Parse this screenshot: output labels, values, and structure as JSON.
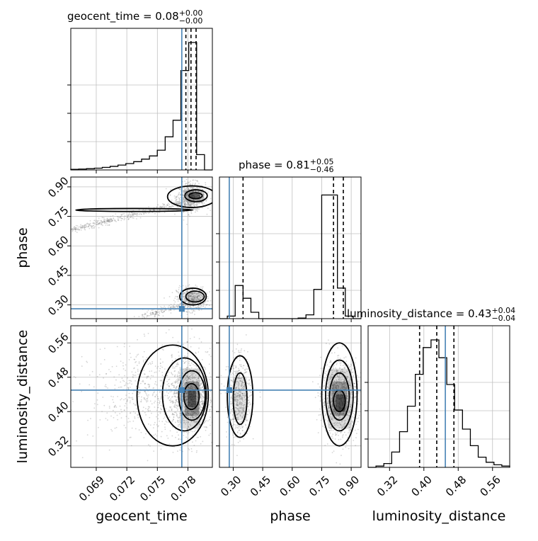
{
  "chart_data": {
    "type": "corner",
    "colors": {
      "truth": "#4682b4",
      "hist": "#000000",
      "grid": "#c0c0c0",
      "points": "#8a8a8a"
    },
    "parameters": [
      {
        "name": "geocent_time",
        "label": "geocent_time",
        "range": [
          0.0665,
          0.0804
        ],
        "ticks": [
          0.069,
          0.072,
          0.075,
          0.078
        ],
        "tick_labels": [
          "0.069",
          "0.072",
          "0.075",
          "0.078"
        ],
        "truth": 0.0774,
        "median": 0.0783,
        "quantiles": [
          0.0778,
          0.0783,
          0.0788
        ]
      },
      {
        "name": "phase",
        "label": "phase",
        "range": [
          0.23,
          0.95
        ],
        "ticks": [
          0.3,
          0.45,
          0.6,
          0.75,
          0.9
        ],
        "tick_labels": [
          "0.30",
          "0.45",
          "0.60",
          "0.75",
          "0.90"
        ],
        "truth": 0.28,
        "median": 0.81,
        "quantiles": [
          0.35,
          0.81,
          0.86
        ]
      },
      {
        "name": "luminosity_distance",
        "label": "luminosity_distance",
        "range": [
          0.27,
          0.6
        ],
        "ticks": [
          0.32,
          0.4,
          0.48,
          0.56
        ],
        "tick_labels": [
          "0.32",
          "0.40",
          "0.48",
          "0.56"
        ],
        "truth": 0.45,
        "median": 0.43,
        "quantiles": [
          0.39,
          0.43,
          0.47
        ]
      }
    ],
    "titles": [
      {
        "param": "geocent_time",
        "prefix": "geocent_time = 0.08",
        "plus": "+0.00",
        "minus": "−0.00"
      },
      {
        "param": "phase",
        "prefix": "phase = 0.81",
        "plus": "+0.05",
        "minus": "−0.46"
      },
      {
        "param": "luminosity_distance",
        "prefix": "luminosity_distance = 0.43",
        "plus": "+0.04",
        "minus": "−0.04"
      }
    ],
    "histograms": {
      "geocent_time": [
        0.005,
        0.007,
        0.01,
        0.014,
        0.02,
        0.028,
        0.038,
        0.05,
        0.065,
        0.085,
        0.11,
        0.155,
        0.26,
        0.39,
        0.78,
        1.0,
        0.12,
        0.0
      ],
      "phase": [
        0.0,
        0.02,
        0.26,
        0.16,
        0.05,
        0.0,
        0.0,
        0.0,
        0.0,
        0.0,
        0.005,
        0.03,
        0.23,
        0.97,
        0.97,
        0.24,
        0.02,
        0.0
      ],
      "luminosity_distance": [
        0.0,
        0.01,
        0.03,
        0.12,
        0.28,
        0.48,
        0.73,
        0.94,
        1.0,
        0.86,
        0.65,
        0.45,
        0.3,
        0.17,
        0.08,
        0.04,
        0.02,
        0.01
      ]
    },
    "grid": true,
    "grid_note": "2-d panels show density contours at 0.5/1/1.5/2 sigma levels"
  }
}
